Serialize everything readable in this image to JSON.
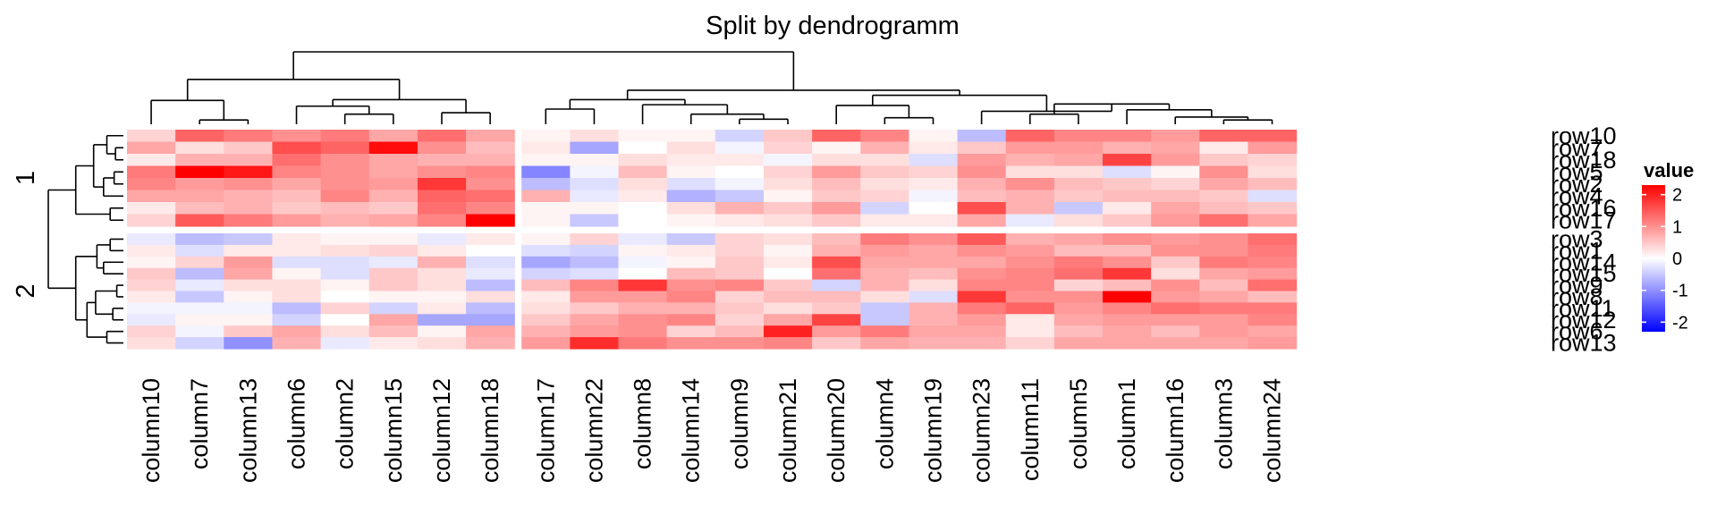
{
  "chart_data": {
    "type": "heatmap",
    "title": "Split by dendrogramm",
    "column_slices": [
      [
        "column10",
        "column7",
        "column13",
        "column6",
        "column2",
        "column15",
        "column12",
        "column18"
      ],
      [
        "column17",
        "column22",
        "column8",
        "column14",
        "column9",
        "column21",
        "column20",
        "column4",
        "column19",
        "column23",
        "column11",
        "column5",
        "column1",
        "column16",
        "column3",
        "column24"
      ]
    ],
    "row_slices": [
      {
        "name": "1",
        "rows": [
          "row10",
          "row7",
          "row18",
          "row5",
          "row2",
          "row4",
          "row16",
          "row17"
        ]
      },
      {
        "name": "2",
        "rows": [
          "row3",
          "row1",
          "row14",
          "row15",
          "row9",
          "row8",
          "row11",
          "row12",
          "row6",
          "row13"
        ]
      }
    ],
    "values": [
      [
        0.4,
        1.4,
        1.2,
        1.0,
        1.2,
        0.8,
        1.3,
        0.8,
        0.1,
        0.3,
        0.1,
        0.1,
        -0.4,
        0.5,
        1.4,
        1.1,
        0.1,
        -0.6,
        1.4,
        1.1,
        1.1,
        0.9,
        1.4,
        1.4
      ],
      [
        0.8,
        0.3,
        0.5,
        1.6,
        1.4,
        2.2,
        1.0,
        0.6,
        0.2,
        -0.8,
        0.0,
        0.3,
        -0.1,
        0.4,
        0.1,
        0.7,
        0.2,
        0.5,
        0.9,
        0.9,
        0.7,
        0.8,
        0.2,
        0.9
      ],
      [
        0.2,
        0.7,
        0.7,
        1.3,
        1.0,
        0.8,
        0.7,
        0.7,
        0.1,
        0.1,
        0.3,
        0.2,
        0.2,
        -0.1,
        0.3,
        0.3,
        -0.3,
        0.9,
        0.7,
        0.8,
        1.7,
        0.9,
        0.5,
        0.4
      ],
      [
        1.2,
        2.3,
        2.1,
        1.1,
        1.0,
        0.8,
        1.0,
        1.1,
        -1.1,
        -0.1,
        0.6,
        0.1,
        0.0,
        0.4,
        0.9,
        0.5,
        0.4,
        1.0,
        0.3,
        0.3,
        -0.3,
        0.1,
        1.0,
        0.3
      ],
      [
        1.1,
        0.9,
        1.0,
        0.8,
        1.0,
        0.9,
        1.8,
        1.0,
        -0.6,
        -0.3,
        0.3,
        -0.3,
        -0.1,
        0.3,
        0.6,
        0.3,
        0.2,
        0.7,
        1.0,
        0.6,
        0.5,
        0.4,
        0.8,
        0.6
      ],
      [
        0.8,
        0.8,
        0.7,
        0.6,
        1.1,
        0.7,
        1.4,
        1.3,
        0.7,
        -0.2,
        0.2,
        -0.7,
        -0.5,
        0.1,
        0.5,
        0.4,
        -0.1,
        0.6,
        0.7,
        0.5,
        0.6,
        0.6,
        0.5,
        -0.3
      ],
      [
        0.2,
        0.6,
        0.7,
        0.5,
        0.6,
        0.5,
        1.3,
        1.1,
        0.1,
        0.1,
        0.0,
        0.3,
        0.7,
        0.5,
        0.9,
        -0.4,
        0.0,
        1.6,
        0.7,
        -0.5,
        0.2,
        0.8,
        0.6,
        0.5
      ],
      [
        0.4,
        1.5,
        1.2,
        0.9,
        0.7,
        0.8,
        1.1,
        2.4,
        0.1,
        -0.5,
        0.0,
        0.1,
        0.2,
        0.3,
        0.5,
        0.2,
        0.2,
        0.8,
        -0.2,
        0.3,
        0.5,
        0.9,
        1.3,
        0.8
      ],
      [
        -0.2,
        -0.6,
        -0.5,
        0.2,
        0.1,
        0.1,
        -0.2,
        0.2,
        0.1,
        0.4,
        -0.2,
        -0.5,
        0.4,
        0.3,
        0.6,
        1.2,
        1.0,
        1.5,
        0.7,
        0.8,
        1.0,
        0.9,
        1.0,
        1.3
      ],
      [
        0.2,
        -0.3,
        0.2,
        0.2,
        0.3,
        0.4,
        0.2,
        0.0,
        -0.3,
        -0.4,
        0.1,
        0.2,
        0.4,
        0.1,
        0.7,
        0.9,
        0.8,
        1.0,
        0.9,
        0.6,
        0.6,
        1.0,
        1.0,
        1.2
      ],
      [
        0.1,
        0.4,
        0.9,
        -0.3,
        -0.3,
        -0.2,
        0.7,
        -0.3,
        -0.8,
        -0.6,
        -0.1,
        0.1,
        0.5,
        0.2,
        1.6,
        0.8,
        0.8,
        0.8,
        1.0,
        1.2,
        1.0,
        0.5,
        1.2,
        1.1
      ],
      [
        0.5,
        -0.6,
        0.8,
        0.1,
        -0.3,
        0.5,
        0.3,
        -0.2,
        -0.4,
        -0.3,
        0.0,
        0.6,
        0.5,
        0.0,
        1.3,
        0.7,
        0.6,
        1.0,
        1.1,
        1.3,
        1.8,
        0.3,
        0.8,
        0.9
      ],
      [
        0.4,
        -0.2,
        0.3,
        0.3,
        0.1,
        0.5,
        0.3,
        -0.6,
        0.6,
        1.1,
        1.8,
        1.0,
        1.1,
        0.5,
        -0.4,
        0.7,
        0.3,
        1.1,
        1.1,
        0.4,
        0.6,
        1.0,
        0.6,
        1.3
      ],
      [
        0.2,
        -0.5,
        0.1,
        0.3,
        0.0,
        0.1,
        0.1,
        0.3,
        0.2,
        0.9,
        0.9,
        1.1,
        0.4,
        0.6,
        0.6,
        0.3,
        -0.3,
        1.8,
        1.0,
        1.0,
        2.3,
        0.9,
        0.8,
        0.6
      ],
      [
        -0.1,
        -0.1,
        -0.1,
        -0.6,
        0.4,
        -0.4,
        0.2,
        -0.6,
        0.3,
        0.5,
        0.7,
        0.7,
        0.5,
        0.3,
        0.5,
        -0.5,
        0.7,
        1.2,
        1.4,
        0.9,
        1.1,
        1.3,
        1.2,
        1.2
      ],
      [
        -0.2,
        0.1,
        0.1,
        -0.4,
        0.0,
        0.8,
        -0.8,
        -0.8,
        0.5,
        0.8,
        1.0,
        1.1,
        0.4,
        0.8,
        1.7,
        -0.5,
        0.7,
        0.9,
        0.2,
        0.8,
        0.9,
        0.9,
        0.9,
        1.1
      ],
      [
        0.4,
        -0.1,
        0.5,
        0.8,
        0.3,
        0.6,
        0.1,
        0.8,
        0.7,
        0.9,
        1.0,
        0.4,
        0.6,
        2.0,
        0.9,
        1.2,
        0.8,
        0.8,
        0.2,
        0.6,
        0.8,
        0.6,
        0.9,
        0.8
      ],
      [
        0.3,
        -0.4,
        -1.0,
        0.7,
        -0.2,
        0.2,
        0.3,
        0.7,
        0.9,
        1.9,
        1.2,
        1.0,
        1.0,
        1.1,
        0.5,
        0.8,
        0.7,
        0.7,
        0.4,
        0.8,
        0.8,
        0.8,
        0.8,
        0.9
      ]
    ],
    "legend": {
      "title": "value",
      "ticks": [
        2,
        1,
        0,
        -1,
        -2
      ],
      "tick_labels": [
        "2",
        "1",
        "0",
        "-1",
        "-2"
      ],
      "range": [
        -2.3,
        2.3
      ],
      "colors": {
        "low": "#0000ff",
        "mid": "#ffffff",
        "high": "#ff0000"
      },
      "placement": "right"
    }
  }
}
